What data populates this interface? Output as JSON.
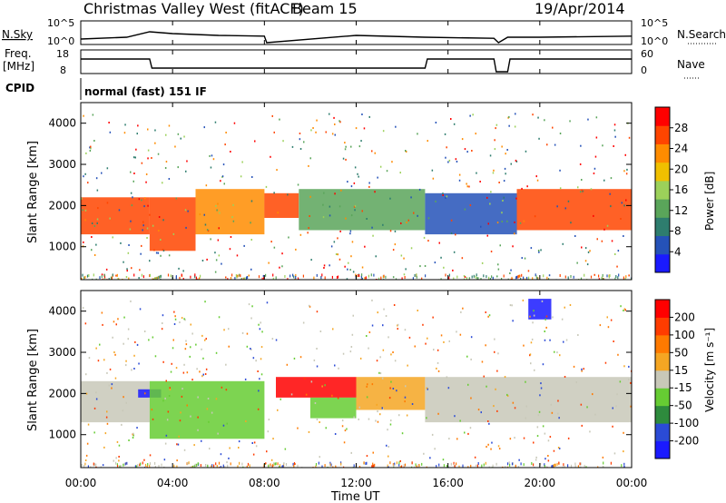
{
  "header": {
    "title": "Christmas Valley West (fitACF)",
    "beam": "Beam 15",
    "date": "19/Apr/2014"
  },
  "top_panels": {
    "nsky_label": "N.Sky",
    "nsearch_label": "N.Search",
    "freq_label": "Freq.",
    "freq_unit": "[MHz]",
    "nave_label": "Nave",
    "cpid_label": "CPID",
    "cpid_text": "normal (fast) 151 IF",
    "noise_ticks": [
      "10^5",
      "10^0"
    ],
    "freq_ticks": [
      "18",
      "8"
    ],
    "nave_ticks": [
      "60",
      "0"
    ]
  },
  "axes": {
    "x_label": "Time UT",
    "x_ticks": [
      "00:00",
      "04:00",
      "08:00",
      "12:00",
      "16:00",
      "20:00",
      "00:00"
    ],
    "y_label": "Slant Range [km]",
    "y_ticks": [
      "1000",
      "2000",
      "3000",
      "4000"
    ]
  },
  "power_colorbar": {
    "label": "Power [dB]",
    "ticks": [
      "4",
      "8",
      "12",
      "16",
      "20",
      "24",
      "28"
    ],
    "colors": [
      "#1a1aff",
      "#2552b8",
      "#2e7d6e",
      "#5aa55a",
      "#9cd15a",
      "#f0c000",
      "#ff8c00",
      "#ff4500",
      "#ff0000"
    ]
  },
  "velocity_colorbar": {
    "label": "Velocity [m s⁻¹]",
    "ticks": [
      "200",
      "100",
      "50",
      "15",
      "-15",
      "-50",
      "-100",
      "-200"
    ],
    "colors": [
      "#1a1aff",
      "#2b4bd6",
      "#2e8b3d",
      "#66cc33",
      "#c8c8b8",
      "#f5a623",
      "#ff7a00",
      "#ff3c00",
      "#ff0000"
    ]
  },
  "chart_data": [
    {
      "type": "line",
      "title": "Christmas Valley West (fitACF)",
      "subtitle": "Beam 15",
      "series": [
        {
          "name": "N.Sky",
          "x": [
            0,
            2,
            3,
            4,
            6,
            8,
            8.1,
            12,
            15,
            18,
            18.2,
            18.6,
            20,
            24
          ],
          "values": [
            1,
            1.5,
            3,
            2.5,
            2,
            1.8,
            0,
            2,
            1.5,
            1.2,
            0,
            1.5,
            1.5,
            1.8
          ]
        },
        {
          "name": "N.Search"
        }
      ],
      "ylim": [
        0,
        5
      ]
    },
    {
      "type": "line",
      "series": [
        {
          "name": "Freq.",
          "x": [
            0,
            3,
            3.1,
            15,
            15.1,
            18,
            18.1,
            18.6,
            18.7,
            24
          ],
          "values": [
            15,
            15,
            10,
            10,
            15,
            15,
            8,
            8,
            15,
            15
          ]
        },
        {
          "name": "Nave"
        }
      ],
      "ylim": [
        8,
        18
      ]
    },
    {
      "type": "heatmap",
      "title": "Power",
      "xlabel": "Time UT",
      "ylabel": "Slant Range [km]",
      "xlim": [
        0,
        24
      ],
      "ylim": [
        200,
        4500
      ],
      "colorbar_label": "Power [dB]",
      "colorbar_range": [
        0,
        30
      ],
      "regions": [
        {
          "t0": 0,
          "t1": 3,
          "r0": 1300,
          "r1": 2200,
          "value": 26
        },
        {
          "t0": 3,
          "t1": 5,
          "r0": 900,
          "r1": 2200,
          "value": 24
        },
        {
          "t0": 5,
          "t1": 8,
          "r0": 1300,
          "r1": 2400,
          "value": 22
        },
        {
          "t0": 8,
          "t1": 9.5,
          "r0": 1700,
          "r1": 2300,
          "value": 26
        },
        {
          "t0": 9.5,
          "t1": 15,
          "r0": 1400,
          "r1": 2400,
          "value": 12
        },
        {
          "t0": 15,
          "t1": 19,
          "r0": 1300,
          "r1": 2300,
          "value": 6
        },
        {
          "t0": 19,
          "t1": 24,
          "r0": 1400,
          "r1": 2400,
          "value": 24
        }
      ]
    },
    {
      "type": "heatmap",
      "title": "Velocity",
      "xlabel": "Time UT",
      "ylabel": "Slant Range [km]",
      "xlim": [
        0,
        24
      ],
      "ylim": [
        200,
        4500
      ],
      "colorbar_label": "Velocity [m s⁻¹]",
      "colorbar_range": [
        -200,
        200
      ],
      "regions": [
        {
          "t0": 0,
          "t1": 3,
          "r0": 1300,
          "r1": 2300,
          "value": 0
        },
        {
          "t0": 2.5,
          "t1": 3.5,
          "r0": 1900,
          "r1": 2100,
          "value": -200
        },
        {
          "t0": 3,
          "t1": 8,
          "r0": 900,
          "r1": 2300,
          "value": -30
        },
        {
          "t0": 8.5,
          "t1": 12,
          "r0": 1900,
          "r1": 2400,
          "value": 200
        },
        {
          "t0": 10,
          "t1": 12,
          "r0": 1400,
          "r1": 1900,
          "value": -60
        },
        {
          "t0": 12,
          "t1": 15,
          "r0": 1600,
          "r1": 2400,
          "value": 50
        },
        {
          "t0": 15,
          "t1": 24,
          "r0": 1300,
          "r1": 2400,
          "value": 0
        },
        {
          "t0": 19.5,
          "t1": 20.5,
          "r0": 3800,
          "r1": 4300,
          "value": -200
        }
      ]
    }
  ]
}
